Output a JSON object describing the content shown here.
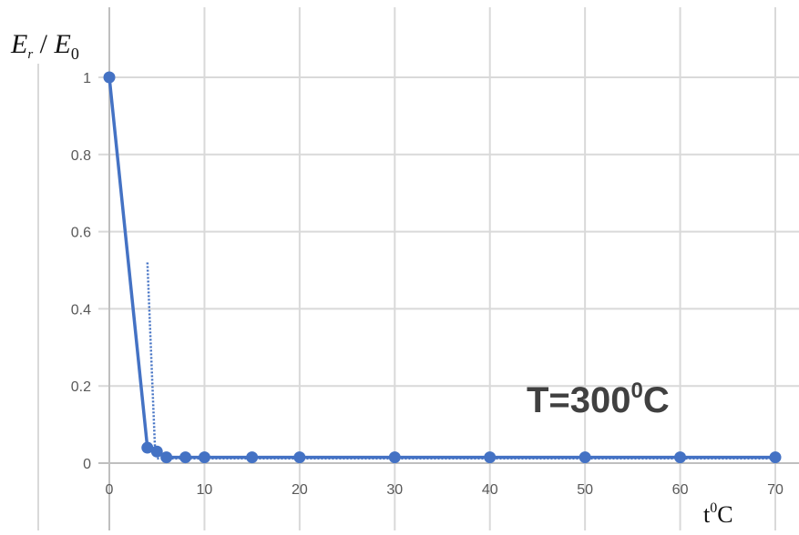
{
  "chart_data": {
    "type": "line",
    "title": "",
    "ylabel": {
      "main": "E",
      "sub1": "r",
      "sep": " / ",
      "main2": "E",
      "sub2": "0"
    },
    "xlabel": {
      "pre": "t",
      "sup": "0",
      "post": "C"
    },
    "annotation": {
      "pre": "T=300",
      "sup": "0",
      "post": "C"
    },
    "xlim": [
      0,
      70
    ],
    "ylim": [
      0,
      1
    ],
    "x_ticks": [
      0,
      10,
      20,
      30,
      40,
      50,
      60,
      70
    ],
    "y_ticks": [
      0,
      0.2,
      0.4,
      0.6,
      0.8,
      1
    ],
    "y_tick_labels": [
      "0",
      "0.2",
      "0.4",
      "0.6",
      "0.8",
      "1"
    ],
    "grid": true,
    "series": [
      {
        "x": [
          0,
          4,
          5,
          6,
          8,
          10,
          15,
          20,
          30,
          40,
          50,
          60,
          70
        ],
        "y": [
          1,
          0.04,
          0.03,
          0.015,
          0.015,
          0.015,
          0.015,
          0.015,
          0.015,
          0.015,
          0.015,
          0.015,
          0.015
        ],
        "line_style": "solid",
        "markers": true
      },
      {
        "x": [
          4,
          4.8,
          5,
          6,
          10,
          20,
          30,
          40,
          50,
          60,
          70
        ],
        "y": [
          0.52,
          0.04,
          0.012,
          0.012,
          0.012,
          0.012,
          0.012,
          0.012,
          0.012,
          0.012,
          0.012
        ],
        "line_style": "dotted",
        "markers": false
      }
    ],
    "colors": {
      "line": "#4472C4",
      "grid": "#D9D9D9",
      "tick_text": "#595959",
      "annotation": "#404040"
    }
  }
}
